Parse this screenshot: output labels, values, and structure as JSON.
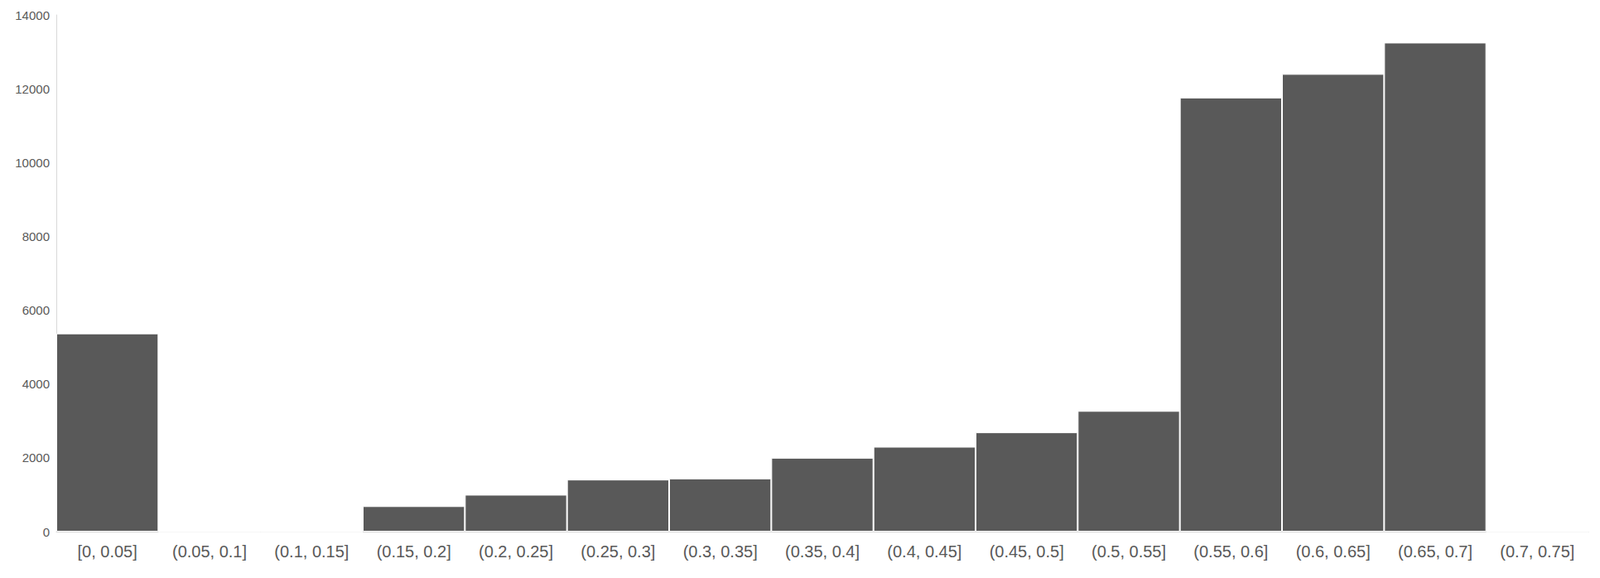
{
  "chart_data": {
    "type": "bar",
    "categories": [
      "[0, 0.05]",
      "(0.05, 0.1]",
      "(0.1, 0.15]",
      "(0.15, 0.2]",
      "(0.2, 0.25]",
      "(0.25, 0.3]",
      "(0.3, 0.35]",
      "(0.35, 0.4]",
      "(0.4, 0.45]",
      "(0.45, 0.5]",
      "(0.5, 0.55]",
      "(0.55, 0.6]",
      "(0.6, 0.65]",
      "(0.65, 0.7]",
      "(0.7, 0.75]"
    ],
    "values": [
      5370,
      0,
      0,
      690,
      1000,
      1410,
      1440,
      2000,
      2300,
      2690,
      3270,
      11760,
      12400,
      13250,
      0
    ],
    "color": "#595959",
    "ylim": [
      0,
      14000
    ],
    "yticks": [
      0,
      2000,
      4000,
      6000,
      8000,
      10000,
      12000,
      14000
    ],
    "grid": false
  }
}
